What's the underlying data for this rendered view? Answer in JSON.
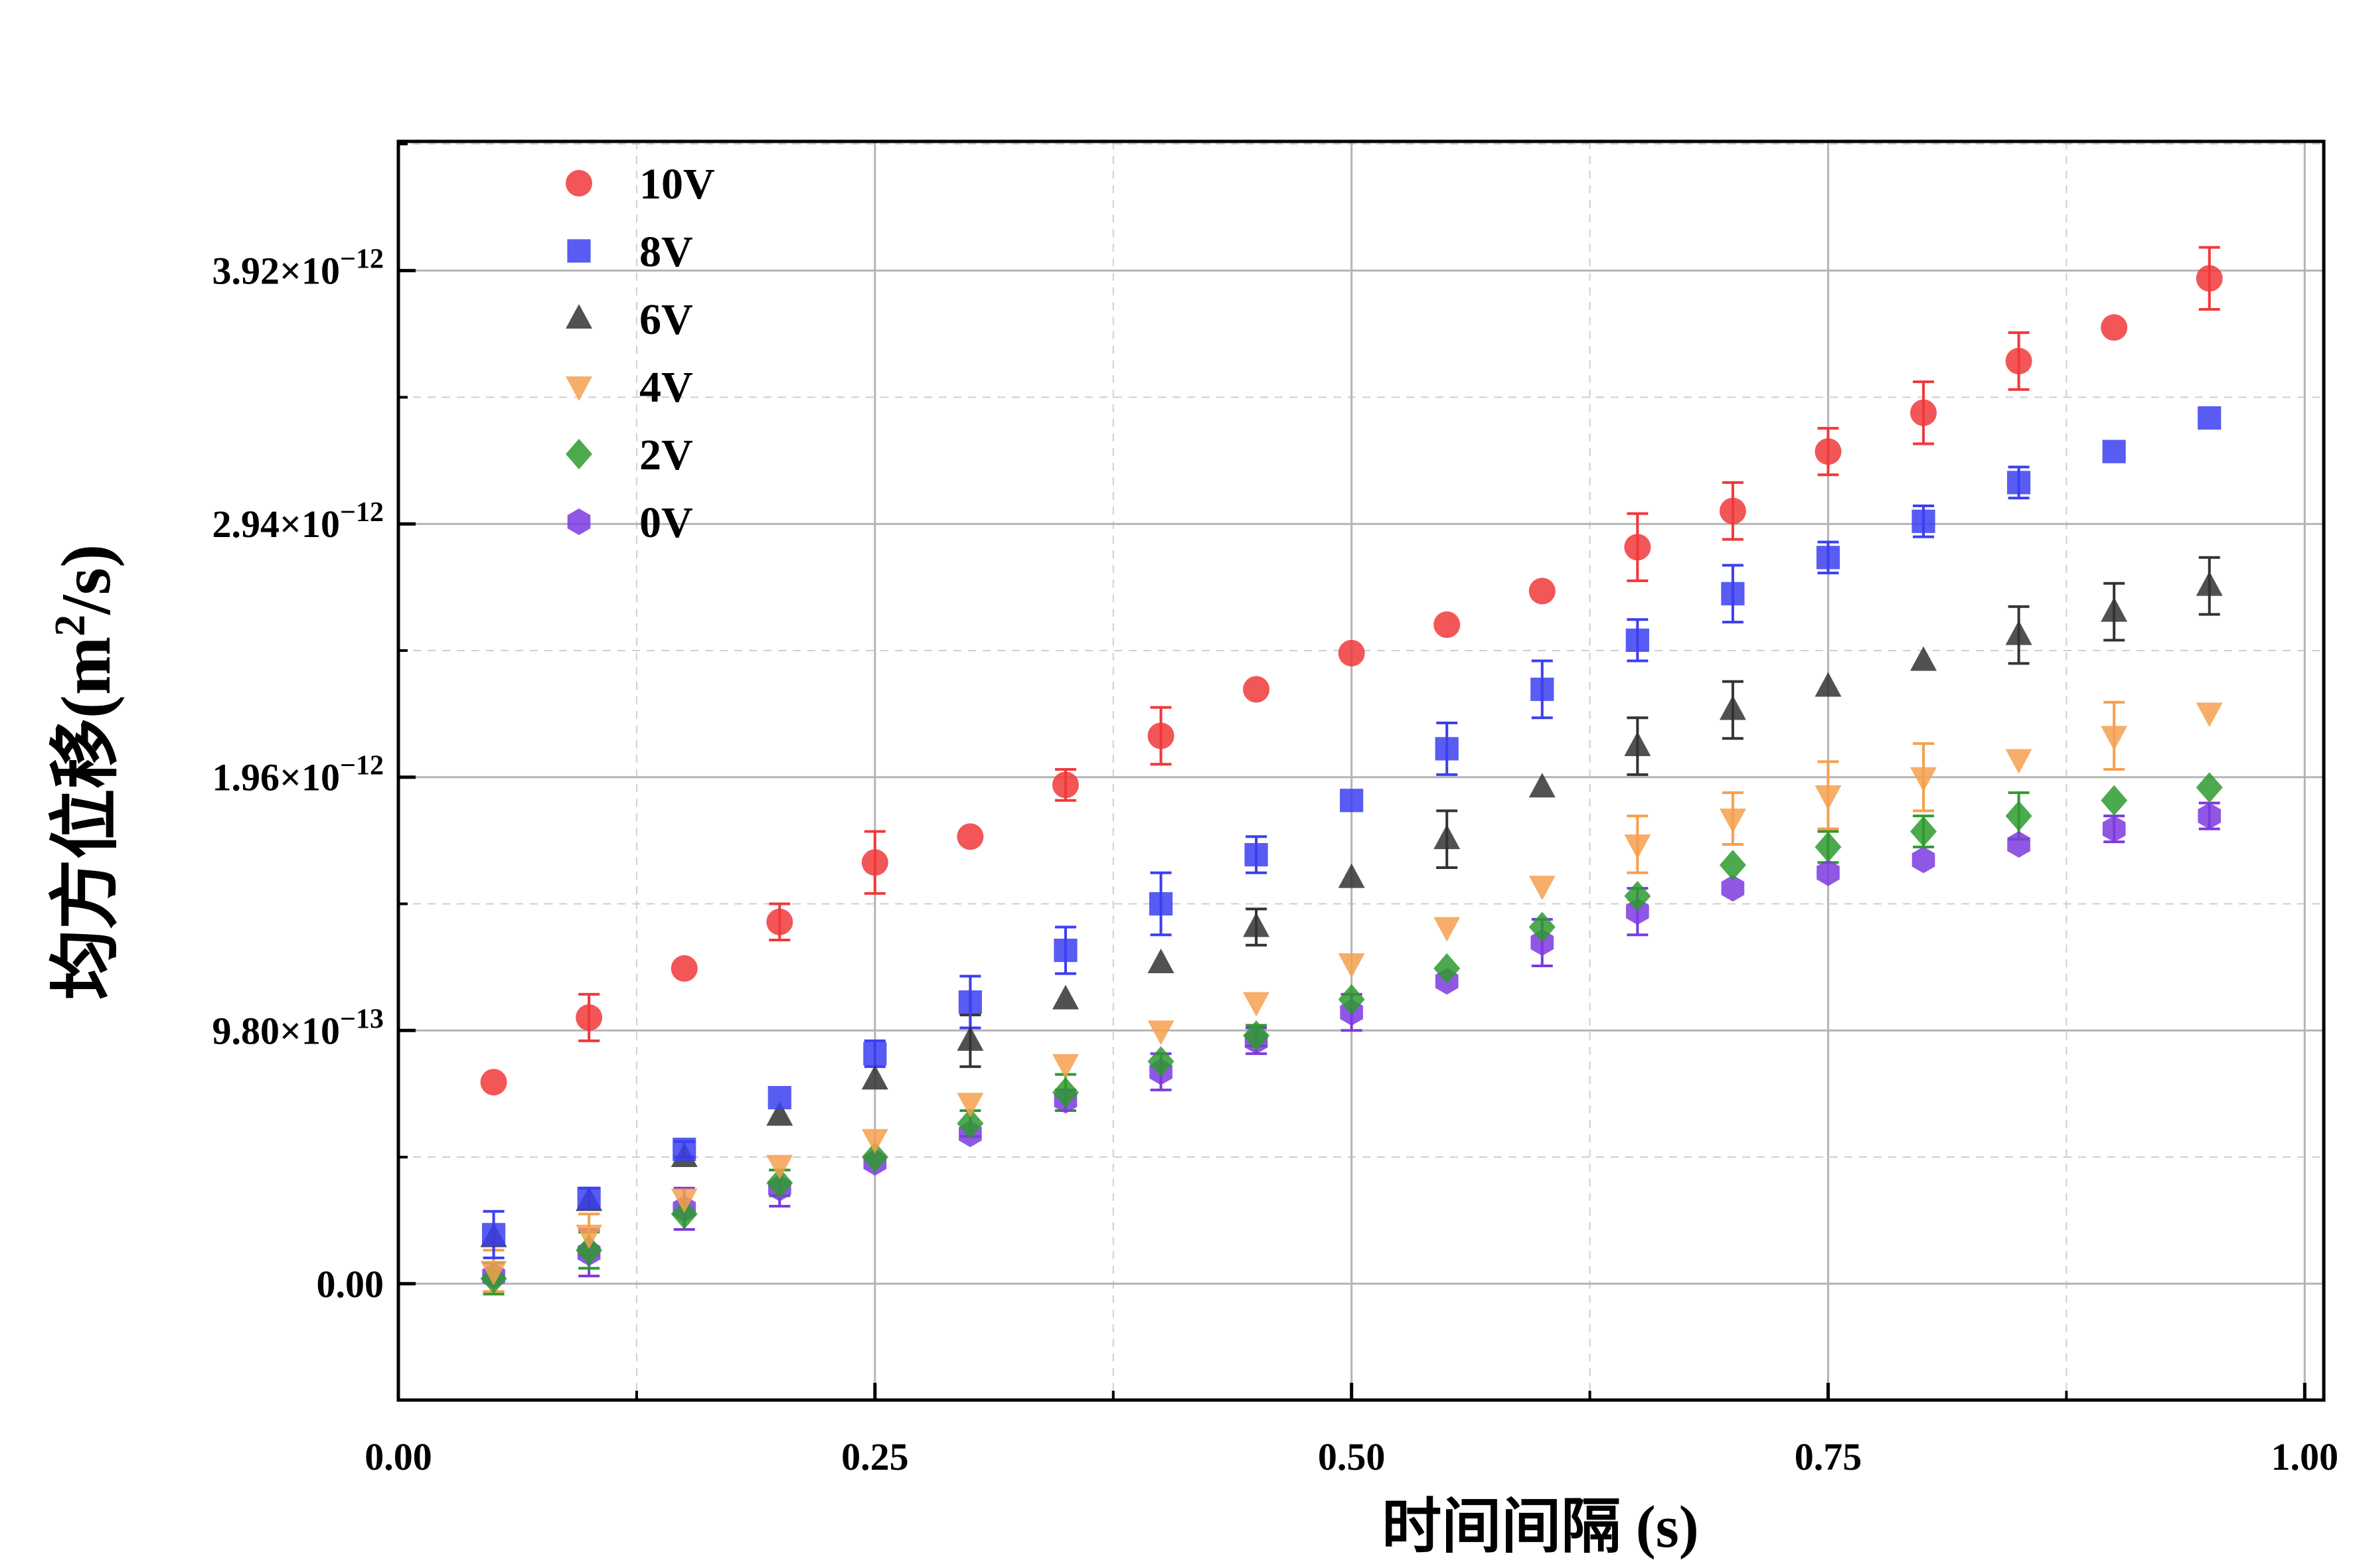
{
  "chart_data": {
    "type": "scatter",
    "xlabel": "时间间隔 (s)",
    "ylabel_main": "均方位移(m",
    "ylabel_sup": "2",
    "ylabel_tail": "/s)",
    "xlim": [
      0.0,
      1.01
    ],
    "ylim": [
      -4.5e-13,
      4.42e-12
    ],
    "x_ticks": [
      0.0,
      0.25,
      0.5,
      0.75,
      1.0
    ],
    "x_tick_labels": [
      "0.00",
      "0.25",
      "0.50",
      "0.75",
      "1.00"
    ],
    "y_ticks": [
      0.0,
      9.8e-13,
      1.96e-12,
      2.94e-12,
      3.92e-12
    ],
    "y_tick_labels": [
      {
        "mant": "0.00",
        "exp": ""
      },
      {
        "mant": "9.80×10",
        "exp": "−13"
      },
      {
        "mant": "1.96×10",
        "exp": "−12"
      },
      {
        "mant": "2.94×10",
        "exp": "−12"
      },
      {
        "mant": "3.92×10",
        "exp": "−12"
      }
    ],
    "grid": true,
    "legend_position": "top-left",
    "x": [
      0.05,
      0.1,
      0.15,
      0.2,
      0.25,
      0.3,
      0.35,
      0.4,
      0.45,
      0.5,
      0.55,
      0.6,
      0.65,
      0.7,
      0.75,
      0.8,
      0.85,
      0.9,
      0.95
    ],
    "series": [
      {
        "name": "10V",
        "marker": "circle",
        "color": "#f0383a",
        "values": [
          0.78,
          1.03,
          1.22,
          1.4,
          1.63,
          1.73,
          1.93,
          2.12,
          2.3,
          2.44,
          2.55,
          2.68,
          2.85,
          2.99,
          3.22,
          3.37,
          3.57,
          3.7,
          3.89
        ],
        "errors": [
          0.0,
          0.09,
          0.0,
          0.07,
          0.12,
          0.0,
          0.06,
          0.11,
          0.0,
          0.0,
          0.0,
          0.0,
          0.13,
          0.11,
          0.09,
          0.12,
          0.11,
          0.0,
          0.12
        ]
      },
      {
        "name": "8V",
        "marker": "square",
        "color": "#3b3ff0",
        "values": [
          0.19,
          0.33,
          0.52,
          0.72,
          0.89,
          1.09,
          1.29,
          1.47,
          1.66,
          1.87,
          2.07,
          2.3,
          2.49,
          2.67,
          2.81,
          2.95,
          3.1,
          3.22,
          3.35
        ],
        "errors": [
          0.09,
          0.04,
          0.03,
          0.0,
          0.05,
          0.1,
          0.09,
          0.12,
          0.07,
          0.0,
          0.1,
          0.11,
          0.08,
          0.11,
          0.06,
          0.06,
          0.06,
          0.0,
          0.0
        ]
      },
      {
        "name": "6V",
        "marker": "triangle-up",
        "color": "#333333",
        "values": [
          0.18,
          0.32,
          0.49,
          0.65,
          0.79,
          0.94,
          1.1,
          1.24,
          1.38,
          1.57,
          1.72,
          1.92,
          2.08,
          2.22,
          2.31,
          2.41,
          2.51,
          2.6,
          2.7
        ],
        "errors": [
          0.0,
          0.0,
          0.0,
          0.0,
          0.0,
          0.1,
          0.0,
          0.0,
          0.07,
          0.0,
          0.11,
          0.0,
          0.11,
          0.11,
          0.0,
          0.0,
          0.11,
          0.11,
          0.11
        ]
      },
      {
        "name": "4V",
        "marker": "triangle-down",
        "color": "#f5a04f",
        "values": [
          0.05,
          0.19,
          0.33,
          0.46,
          0.56,
          0.7,
          0.85,
          0.98,
          1.09,
          1.24,
          1.38,
          1.54,
          1.7,
          1.8,
          1.89,
          1.96,
          2.03,
          2.12,
          2.21
        ],
        "errors": [
          0.08,
          0.08,
          0.0,
          0.0,
          0.0,
          0.0,
          0.0,
          0.0,
          0.0,
          0.0,
          0.0,
          0.0,
          0.11,
          0.1,
          0.13,
          0.13,
          0.0,
          0.13,
          0.0
        ]
      },
      {
        "name": "2V",
        "marker": "diamond",
        "color": "#2e9a2e",
        "values": [
          0.02,
          0.13,
          0.27,
          0.39,
          0.49,
          0.62,
          0.74,
          0.86,
          0.96,
          1.1,
          1.22,
          1.38,
          1.5,
          1.62,
          1.69,
          1.75,
          1.81,
          1.87,
          1.92
        ],
        "errors": [
          0.06,
          0.07,
          0.0,
          0.05,
          0.0,
          0.05,
          0.07,
          0.0,
          0.04,
          0.0,
          0.0,
          0.0,
          0.0,
          0.0,
          0.06,
          0.06,
          0.09,
          0.0,
          0.0
        ]
      },
      {
        "name": "0V",
        "marker": "hexagon",
        "color": "#7c3ae0",
        "values": [
          0.03,
          0.12,
          0.29,
          0.37,
          0.47,
          0.58,
          0.71,
          0.82,
          0.94,
          1.05,
          1.17,
          1.32,
          1.44,
          1.53,
          1.59,
          1.64,
          1.7,
          1.76,
          1.81
        ],
        "errors": [
          0.0,
          0.09,
          0.08,
          0.07,
          0.0,
          0.0,
          0.04,
          0.07,
          0.05,
          0.07,
          0.0,
          0.09,
          0.09,
          0.0,
          0.0,
          0.0,
          0.0,
          0.05,
          0.05
        ]
      }
    ],
    "value_scale": 1e-12
  }
}
